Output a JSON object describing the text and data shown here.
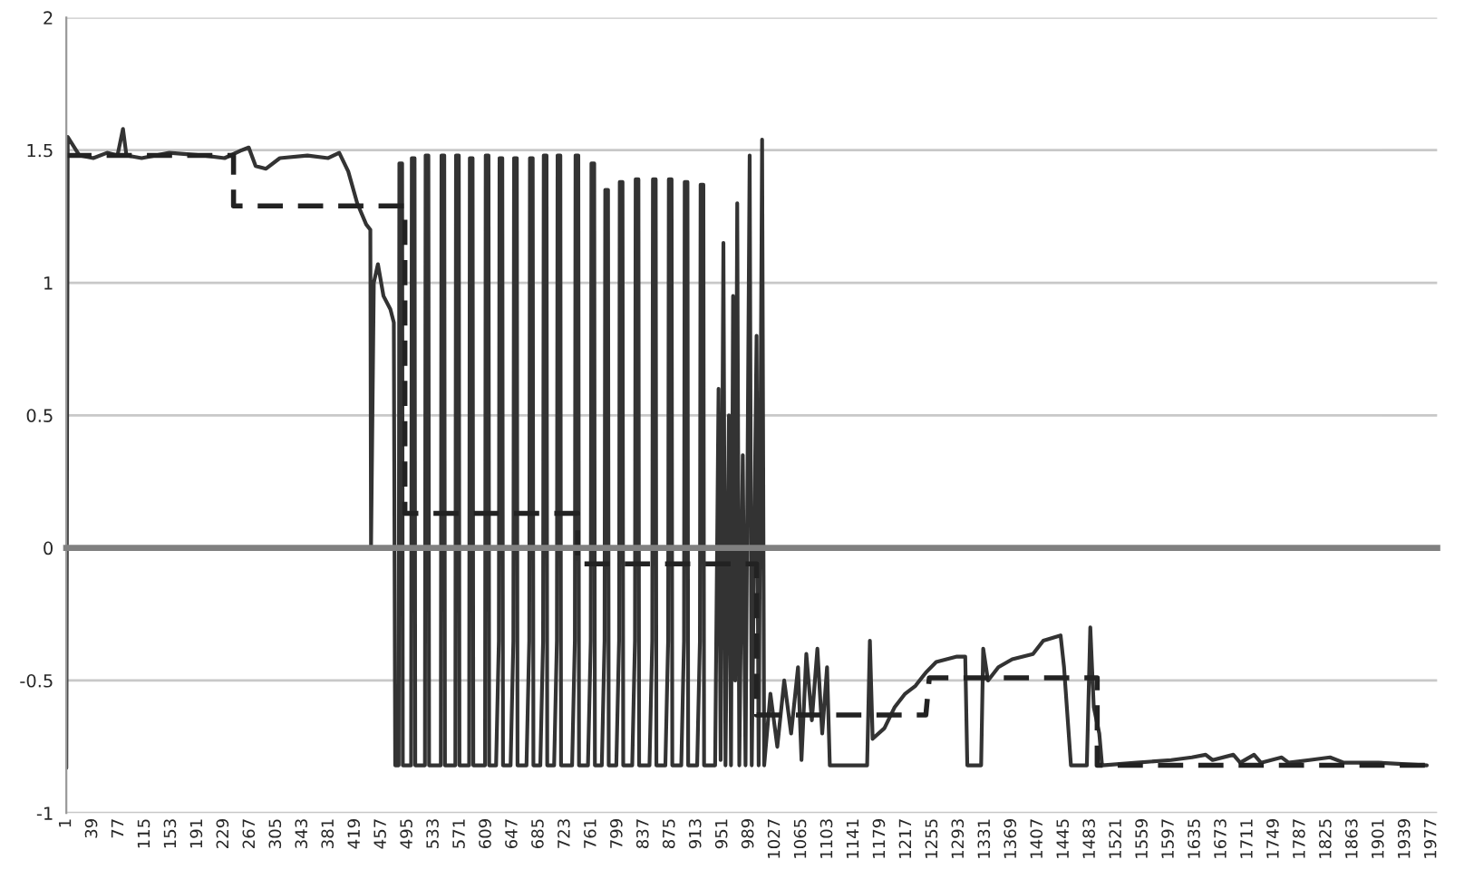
{
  "chart_data": {
    "type": "line",
    "xlim": [
      1,
      1985
    ],
    "xticks": [
      1,
      39,
      77,
      115,
      153,
      191,
      229,
      267,
      305,
      343,
      381,
      419,
      457,
      495,
      533,
      571,
      609,
      647,
      685,
      723,
      761,
      799,
      837,
      875,
      913,
      951,
      989,
      1027,
      1065,
      1103,
      1141,
      1179,
      1217,
      1255,
      1293,
      1331,
      1369,
      1407,
      1445,
      1483,
      1521,
      1559,
      1597,
      1635,
      1673,
      1711,
      1749,
      1787,
      1825,
      1863,
      1901,
      1939,
      1977
    ],
    "ylim": [
      -1,
      2
    ],
    "yticks": [
      -1,
      -0.5,
      0,
      0.5,
      1,
      1.5,
      2
    ],
    "grid": "y",
    "series": [
      {
        "color": "#333333",
        "line_style": "solid",
        "x": [
          1,
          3,
          20,
          40,
          60,
          75,
          83,
          88,
          110,
          150,
          200,
          230,
          255,
          265,
          275,
          290,
          310,
          350,
          380,
          396,
          409,
          422,
          435,
          441,
          442,
          446,
          452,
          460,
          470,
          475,
          477,
          482,
          483,
          487,
          488,
          500,
          501,
          505,
          506,
          520,
          521,
          525,
          526,
          543,
          544,
          548,
          549,
          564,
          565,
          569,
          570,
          584,
          585,
          589,
          590,
          607,
          608,
          612,
          613,
          623,
          627,
          628,
          632,
          633,
          644,
          648,
          649,
          653,
          654,
          667,
          671,
          672,
          676,
          677,
          687,
          691,
          692,
          696,
          697,
          707,
          711,
          712,
          716,
          717,
          733,
          737,
          738,
          742,
          743,
          756,
          760,
          761,
          765,
          766,
          776,
          780,
          781,
          785,
          786,
          797,
          801,
          802,
          806,
          807,
          820,
          824,
          825,
          829,
          830,
          845,
          849,
          850,
          854,
          855,
          868,
          872,
          873,
          877,
          878,
          891,
          895,
          896,
          900,
          901,
          914,
          918,
          919,
          923,
          924,
          940,
          945,
          948,
          952,
          955,
          960,
          963,
          966,
          969,
          972,
          975,
          980,
          984,
          990,
          993,
          1000,
          1003,
          1008,
          1011,
          1020,
          1030,
          1040,
          1050,
          1060,
          1065,
          1072,
          1080,
          1088,
          1095,
          1102,
          1106,
          1160,
          1164,
          1168,
          1185,
          1200,
          1215,
          1230,
          1245,
          1260,
          1290,
          1302,
          1305,
          1325,
          1328,
          1335,
          1350,
          1370,
          1400,
          1415,
          1440,
          1445,
          1455,
          1478,
          1483,
          1488,
          1496,
          1500,
          1550,
          1600,
          1630,
          1650,
          1660,
          1690,
          1700,
          1720,
          1730,
          1760,
          1770,
          1800,
          1830,
          1850,
          1900,
          1970
        ],
        "values": [
          -0.83,
          1.55,
          1.48,
          1.47,
          1.49,
          1.48,
          1.58,
          1.48,
          1.47,
          1.49,
          1.48,
          1.47,
          1.5,
          1.51,
          1.44,
          1.43,
          1.47,
          1.48,
          1.47,
          1.49,
          1.42,
          1.3,
          1.22,
          1.2,
          0.0,
          1.0,
          1.07,
          0.95,
          0.9,
          0.85,
          -0.82,
          -0.82,
          1.45,
          1.45,
          -0.82,
          -0.82,
          1.47,
          1.47,
          -0.82,
          -0.82,
          1.48,
          1.48,
          -0.82,
          -0.82,
          1.48,
          1.48,
          -0.82,
          -0.82,
          1.48,
          1.48,
          -0.82,
          -0.82,
          1.47,
          1.47,
          -0.82,
          -0.82,
          1.48,
          1.48,
          -0.82,
          -0.82,
          -0.35,
          1.47,
          1.47,
          -0.82,
          -0.82,
          -0.35,
          1.47,
          1.47,
          -0.82,
          -0.82,
          -0.35,
          1.47,
          1.47,
          -0.82,
          -0.82,
          -0.35,
          1.48,
          1.48,
          -0.82,
          -0.82,
          -0.35,
          1.48,
          1.48,
          -0.82,
          -0.82,
          -0.35,
          1.48,
          1.48,
          -0.82,
          -0.82,
          -0.35,
          1.45,
          1.45,
          -0.82,
          -0.82,
          -0.35,
          1.35,
          1.35,
          -0.82,
          -0.82,
          -0.35,
          1.38,
          1.38,
          -0.82,
          -0.82,
          -0.35,
          1.39,
          1.39,
          -0.82,
          -0.82,
          -0.35,
          1.39,
          1.39,
          -0.82,
          -0.82,
          -0.35,
          1.39,
          1.39,
          -0.82,
          -0.82,
          -0.35,
          1.38,
          1.38,
          -0.82,
          -0.82,
          -0.35,
          1.37,
          1.37,
          -0.82,
          -0.82,
          0.6,
          -0.8,
          1.15,
          -0.82,
          0.5,
          -0.82,
          0.95,
          -0.5,
          1.3,
          -0.82,
          0.35,
          -0.82,
          1.48,
          -0.82,
          0.8,
          -0.82,
          1.54,
          -0.82,
          -0.55,
          -0.75,
          -0.5,
          -0.7,
          -0.45,
          -0.8,
          -0.4,
          -0.65,
          -0.38,
          -0.7,
          -0.45,
          -0.82,
          -0.82,
          -0.35,
          -0.72,
          -0.68,
          -0.6,
          -0.55,
          -0.52,
          -0.47,
          -0.43,
          -0.41,
          -0.41,
          -0.82,
          -0.82,
          -0.38,
          -0.5,
          -0.45,
          -0.42,
          -0.4,
          -0.35,
          -0.33,
          -0.45,
          -0.82,
          -0.82,
          -0.3,
          -0.6,
          -0.7,
          -0.82,
          -0.81,
          -0.8,
          -0.79,
          -0.78,
          -0.8,
          -0.78,
          -0.81,
          -0.78,
          -0.81,
          -0.79,
          -0.81,
          -0.8,
          -0.79,
          -0.81,
          -0.81,
          -0.82
        ]
      },
      {
        "color": "#222222",
        "line_style": "dashed",
        "x": [
          1,
          243,
          243,
          491,
          491,
          741,
          741,
          1000,
          1000,
          1245,
          1250,
          1493,
          1493,
          1970
        ],
        "values": [
          1.48,
          1.48,
          1.29,
          1.29,
          0.13,
          0.13,
          -0.06,
          -0.06,
          -0.63,
          -0.63,
          -0.49,
          -0.49,
          -0.82,
          -0.82
        ]
      }
    ]
  }
}
